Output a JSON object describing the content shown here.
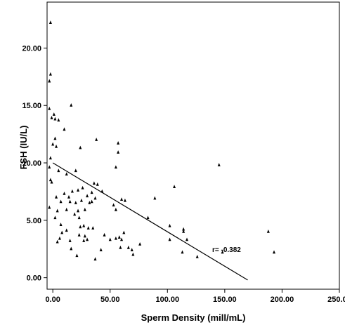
{
  "chart_data": {
    "type": "scatter",
    "title": "",
    "xlabel": "Sperm Density (mill/mL)",
    "ylabel": "FSH (IU/L)",
    "xlim": [
      -5,
      250
    ],
    "ylim": [
      -1,
      24
    ],
    "x_ticks": [
      0,
      50,
      100,
      150,
      200,
      250
    ],
    "x_tick_labels": [
      "0.00",
      "50.00",
      "100.00",
      "150.00",
      "200.00",
      "250.00"
    ],
    "y_ticks": [
      0,
      5,
      10,
      15,
      20
    ],
    "y_tick_labels": [
      "0.00",
      "5.00",
      "10.00",
      "15.00",
      "20.00"
    ],
    "grid": false,
    "annotation": "r= -0.382",
    "regression_line": {
      "x": [
        0,
        170
      ],
      "y": [
        10.0,
        -0.2
      ]
    },
    "points": [
      {
        "x": -2,
        "y": 22.2
      },
      {
        "x": -3,
        "y": 17.1
      },
      {
        "x": -2,
        "y": 17.7
      },
      {
        "x": -3,
        "y": 14.7
      },
      {
        "x": -1,
        "y": 13.9
      },
      {
        "x": 1,
        "y": 14.2
      },
      {
        "x": 2,
        "y": 13.8
      },
      {
        "x": 5,
        "y": 13.7
      },
      {
        "x": 16,
        "y": 15.0
      },
      {
        "x": 10,
        "y": 12.9
      },
      {
        "x": 2,
        "y": 12.1
      },
      {
        "x": 0,
        "y": 11.6
      },
      {
        "x": 3,
        "y": 11.4
      },
      {
        "x": -2,
        "y": 10.4
      },
      {
        "x": -3,
        "y": 9.6
      },
      {
        "x": 38,
        "y": 12.0
      },
      {
        "x": 24,
        "y": 11.3
      },
      {
        "x": 57,
        "y": 11.7
      },
      {
        "x": 57,
        "y": 10.9
      },
      {
        "x": 55,
        "y": 9.6
      },
      {
        "x": 145,
        "y": 9.8
      },
      {
        "x": 5,
        "y": 9.3
      },
      {
        "x": 12,
        "y": 9.0
      },
      {
        "x": 20,
        "y": 9.3
      },
      {
        "x": -2,
        "y": 8.5
      },
      {
        "x": -1,
        "y": 8.3
      },
      {
        "x": 36,
        "y": 8.2
      },
      {
        "x": 39,
        "y": 8.1
      },
      {
        "x": 106,
        "y": 7.9
      },
      {
        "x": 22,
        "y": 7.6
      },
      {
        "x": 26,
        "y": 7.8
      },
      {
        "x": 17,
        "y": 7.5
      },
      {
        "x": 43,
        "y": 7.5
      },
      {
        "x": 3,
        "y": 7.0
      },
      {
        "x": 10,
        "y": 7.3
      },
      {
        "x": 14,
        "y": 7.0
      },
      {
        "x": 30,
        "y": 7.1
      },
      {
        "x": 34,
        "y": 7.4
      },
      {
        "x": 7,
        "y": 6.6
      },
      {
        "x": 15,
        "y": 6.6
      },
      {
        "x": 20,
        "y": 6.5
      },
      {
        "x": 25,
        "y": 6.7
      },
      {
        "x": 32,
        "y": 6.5
      },
      {
        "x": 34,
        "y": 6.6
      },
      {
        "x": 60,
        "y": 6.8
      },
      {
        "x": 63,
        "y": 6.7
      },
      {
        "x": 37,
        "y": 6.9
      },
      {
        "x": 89,
        "y": 6.9
      },
      {
        "x": -3,
        "y": 6.1
      },
      {
        "x": 4,
        "y": 5.8
      },
      {
        "x": 12,
        "y": 5.9
      },
      {
        "x": 22,
        "y": 5.8
      },
      {
        "x": 28,
        "y": 5.9
      },
      {
        "x": 53,
        "y": 6.3
      },
      {
        "x": 55,
        "y": 5.9
      },
      {
        "x": 2,
        "y": 5.2
      },
      {
        "x": 19,
        "y": 5.5
      },
      {
        "x": 23,
        "y": 5.2
      },
      {
        "x": 83,
        "y": 5.2
      },
      {
        "x": 7,
        "y": 4.6
      },
      {
        "x": 24,
        "y": 4.4
      },
      {
        "x": 27,
        "y": 4.5
      },
      {
        "x": 31,
        "y": 4.3
      },
      {
        "x": 35,
        "y": 4.3
      },
      {
        "x": 102,
        "y": 4.5
      },
      {
        "x": 114,
        "y": 4.2
      },
      {
        "x": 114,
        "y": 4.0
      },
      {
        "x": 188,
        "y": 4.0
      },
      {
        "x": 8,
        "y": 3.9
      },
      {
        "x": 12,
        "y": 4.1
      },
      {
        "x": 23,
        "y": 3.7
      },
      {
        "x": 28,
        "y": 3.6
      },
      {
        "x": 45,
        "y": 3.7
      },
      {
        "x": 62,
        "y": 3.9
      },
      {
        "x": 50,
        "y": 3.3
      },
      {
        "x": 55,
        "y": 3.4
      },
      {
        "x": 58,
        "y": 3.5
      },
      {
        "x": 60,
        "y": 3.3
      },
      {
        "x": 4,
        "y": 3.1
      },
      {
        "x": 6,
        "y": 3.4
      },
      {
        "x": 15,
        "y": 3.2
      },
      {
        "x": 27,
        "y": 3.2
      },
      {
        "x": 30,
        "y": 3.3
      },
      {
        "x": 102,
        "y": 3.3
      },
      {
        "x": 117,
        "y": 3.3
      },
      {
        "x": 16,
        "y": 2.5
      },
      {
        "x": 42,
        "y": 2.4
      },
      {
        "x": 59,
        "y": 2.6
      },
      {
        "x": 66,
        "y": 2.6
      },
      {
        "x": 69,
        "y": 2.4
      },
      {
        "x": 76,
        "y": 2.9
      },
      {
        "x": 21,
        "y": 1.9
      },
      {
        "x": 70,
        "y": 2.0
      },
      {
        "x": 113,
        "y": 2.2
      },
      {
        "x": 193,
        "y": 2.2
      },
      {
        "x": 126,
        "y": 1.8
      },
      {
        "x": 37,
        "y": 1.6
      },
      {
        "x": 148,
        "y": 2.2
      }
    ]
  }
}
